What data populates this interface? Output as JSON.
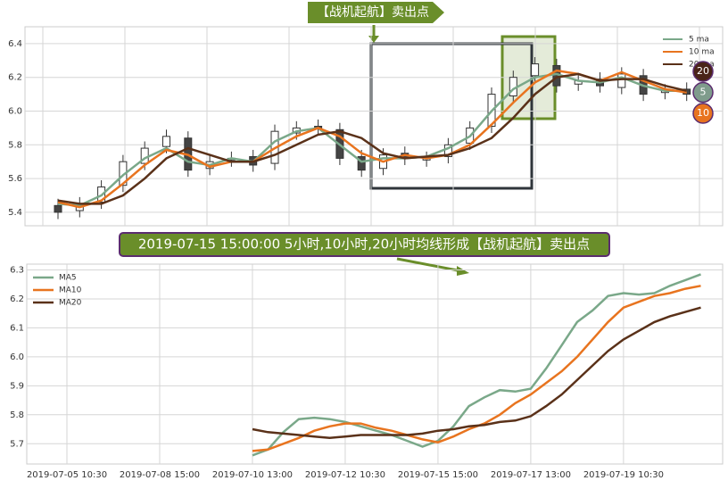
{
  "chart_data": [
    {
      "type": "candlestick",
      "annotation": "【战机起航】卖出点",
      "ylim": [
        5.32,
        6.5
      ],
      "yticks": [
        5.4,
        5.6,
        5.8,
        {
          "value": 6,
          "label": "6.0"
        },
        6.2,
        6.4
      ],
      "grid": true,
      "open": [
        5.44,
        5.41,
        5.46,
        5.56,
        5.69,
        5.79,
        5.84,
        5.66,
        5.71,
        5.73,
        5.69,
        5.87,
        5.91,
        5.89,
        5.73,
        5.66,
        5.75,
        5.71,
        5.73,
        5.81,
        5.91,
        6.09,
        6.21,
        6.27,
        6.16,
        6.19,
        6.14,
        6.21,
        6.11,
        6.13
      ],
      "high": [
        5.48,
        5.49,
        5.59,
        5.74,
        5.82,
        5.89,
        5.88,
        5.74,
        5.76,
        5.77,
        5.92,
        5.94,
        5.95,
        5.93,
        5.77,
        5.78,
        5.79,
        5.76,
        5.84,
        5.94,
        6.14,
        6.24,
        6.32,
        6.31,
        6.22,
        6.23,
        6.26,
        6.25,
        6.16,
        6.17
      ],
      "low": [
        5.36,
        5.37,
        5.42,
        5.52,
        5.65,
        5.75,
        5.61,
        5.62,
        5.67,
        5.64,
        5.65,
        5.83,
        5.86,
        5.68,
        5.61,
        5.62,
        5.68,
        5.67,
        5.69,
        5.77,
        5.87,
        6.05,
        6.17,
        6.11,
        6.12,
        6.11,
        6.1,
        6.06,
        6.07,
        6.06
      ],
      "close": [
        5.4,
        5.45,
        5.55,
        5.7,
        5.78,
        5.85,
        5.65,
        5.7,
        5.72,
        5.68,
        5.88,
        5.9,
        5.9,
        5.72,
        5.65,
        5.74,
        5.72,
        5.72,
        5.8,
        5.9,
        6.1,
        6.2,
        6.28,
        6.15,
        6.18,
        6.15,
        6.22,
        6.1,
        6.12,
        6.1
      ],
      "series": [
        {
          "name": "5 ma",
          "color": "#7aa889",
          "values": [
            5.45,
            5.44,
            5.5,
            5.62,
            5.72,
            5.78,
            5.7,
            5.68,
            5.72,
            5.7,
            5.82,
            5.88,
            5.9,
            5.8,
            5.7,
            5.72,
            5.72,
            5.73,
            5.78,
            5.85,
            6.0,
            6.13,
            6.2,
            6.22,
            6.18,
            6.17,
            6.2,
            6.15,
            6.12,
            6.12
          ]
        },
        {
          "name": "10 ma",
          "color": "#e8741f",
          "values": [
            5.46,
            5.43,
            5.47,
            5.57,
            5.68,
            5.77,
            5.74,
            5.67,
            5.7,
            5.7,
            5.78,
            5.85,
            5.9,
            5.85,
            5.75,
            5.7,
            5.74,
            5.72,
            5.74,
            5.8,
            5.92,
            6.05,
            6.17,
            6.24,
            6.22,
            6.18,
            6.23,
            6.18,
            6.13,
            6.11
          ]
        },
        {
          "name": "20 ma",
          "color": "#5a3119",
          "values": [
            5.47,
            5.45,
            5.45,
            5.5,
            5.6,
            5.72,
            5.78,
            5.74,
            5.7,
            5.7,
            5.74,
            5.8,
            5.86,
            5.88,
            5.84,
            5.75,
            5.72,
            5.73,
            5.74,
            5.78,
            5.84,
            5.96,
            6.1,
            6.2,
            6.22,
            6.18,
            6.19,
            6.19,
            6.15,
            6.12
          ]
        }
      ],
      "badges": [
        {
          "label": "20",
          "color": "#4a2418"
        },
        {
          "label": "5",
          "color": "#7f9c8c"
        },
        {
          "label": "10",
          "color": "#e8741f"
        }
      ]
    },
    {
      "type": "line",
      "annotation": "2019-07-15 15:00:00 5小时,10小时,20小时均线形成【战机起航】卖出点",
      "ylim": [
        5.63,
        6.32
      ],
      "yticks": [
        5.7,
        5.8,
        5.9,
        {
          "value": 6,
          "label": "6.0"
        },
        6.1,
        6.2,
        6.3
      ],
      "grid": true,
      "categories": [
        "2019-07-05 10:30",
        null,
        null,
        null,
        null,
        null,
        "2019-07-08 15:00",
        null,
        null,
        null,
        null,
        null,
        "2019-07-10 13:00",
        null,
        null,
        null,
        null,
        null,
        "2019-07-12 10:30",
        null,
        null,
        null,
        null,
        null,
        "2019-07-15 15:00",
        null,
        null,
        null,
        null,
        null,
        "2019-07-17 13:00",
        null,
        null,
        null,
        null,
        null,
        "2019-07-19 10:30",
        null,
        null,
        null,
        null,
        null
      ],
      "series": [
        {
          "name": "MA5",
          "color": "#7aa889",
          "values": [
            null,
            null,
            null,
            null,
            null,
            null,
            null,
            null,
            null,
            null,
            null,
            null,
            5.66,
            5.68,
            5.74,
            5.785,
            5.79,
            5.785,
            5.775,
            5.76,
            5.745,
            5.73,
            5.71,
            5.69,
            5.71,
            5.76,
            5.83,
            5.86,
            5.885,
            5.88,
            5.89,
            5.96,
            6.04,
            6.12,
            6.16,
            6.21,
            6.22,
            6.215,
            6.22,
            6.245,
            6.265,
            6.285
          ]
        },
        {
          "name": "MA10",
          "color": "#e8741f",
          "values": [
            null,
            null,
            null,
            null,
            null,
            null,
            null,
            null,
            null,
            null,
            null,
            null,
            5.675,
            5.68,
            5.7,
            5.72,
            5.745,
            5.76,
            5.77,
            5.77,
            5.755,
            5.745,
            5.73,
            5.715,
            5.705,
            5.725,
            5.75,
            5.77,
            5.8,
            5.84,
            5.87,
            5.91,
            5.95,
            6.0,
            6.06,
            6.12,
            6.17,
            6.19,
            6.21,
            6.22,
            6.235,
            6.245
          ]
        },
        {
          "name": "MA20",
          "color": "#5a3119",
          "values": [
            null,
            null,
            null,
            null,
            null,
            null,
            null,
            null,
            null,
            null,
            null,
            null,
            5.75,
            5.74,
            5.735,
            5.73,
            5.725,
            5.72,
            5.725,
            5.73,
            5.73,
            5.73,
            5.73,
            5.735,
            5.745,
            5.75,
            5.76,
            5.765,
            5.775,
            5.78,
            5.795,
            5.83,
            5.87,
            5.92,
            5.97,
            6.02,
            6.06,
            6.09,
            6.12,
            6.14,
            6.155,
            6.17
          ]
        }
      ]
    }
  ]
}
